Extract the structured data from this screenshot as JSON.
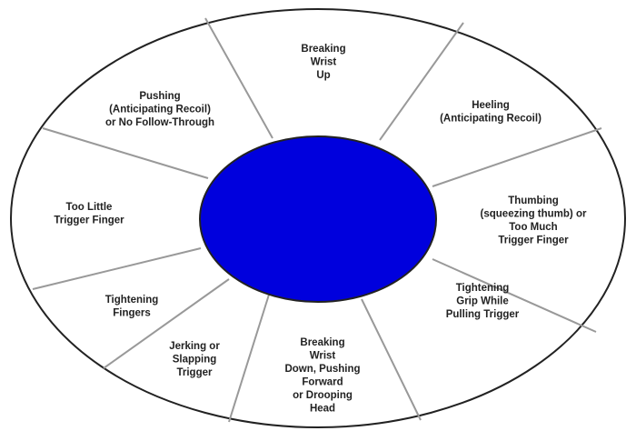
{
  "colors": {
    "center_fill": "#0000dd",
    "center_stroke": "#222222",
    "outline": "#222222",
    "spoke": "#999999",
    "label": "#222222"
  },
  "segments": [
    {
      "id": "breaking-wrist-up",
      "lines": [
        "Breaking",
        "Wrist",
        "Up"
      ]
    },
    {
      "id": "heeling",
      "lines": [
        "Heeling",
        "(Anticipating Recoil)"
      ]
    },
    {
      "id": "thumbing",
      "lines": [
        "Thumbing",
        "(squeezing thumb) or",
        "Too Much",
        "Trigger Finger"
      ]
    },
    {
      "id": "tightening-grip",
      "lines": [
        "Tightening",
        "Grip While",
        "Pulling Trigger"
      ]
    },
    {
      "id": "breaking-wrist-down",
      "lines": [
        "Breaking",
        "Wrist",
        "Down, Pushing",
        "Forward",
        "or Drooping",
        "Head"
      ]
    },
    {
      "id": "jerking",
      "lines": [
        "Jerking or",
        "Slapping",
        "Trigger"
      ]
    },
    {
      "id": "tightening-fingers",
      "lines": [
        "Tightening",
        "Fingers"
      ]
    },
    {
      "id": "too-little-trigger-finger",
      "lines": [
        "Too Little",
        "Trigger Finger"
      ]
    },
    {
      "id": "pushing",
      "lines": [
        "Pushing",
        "(Anticipating Recoil)",
        "or No Follow-Through"
      ]
    }
  ]
}
